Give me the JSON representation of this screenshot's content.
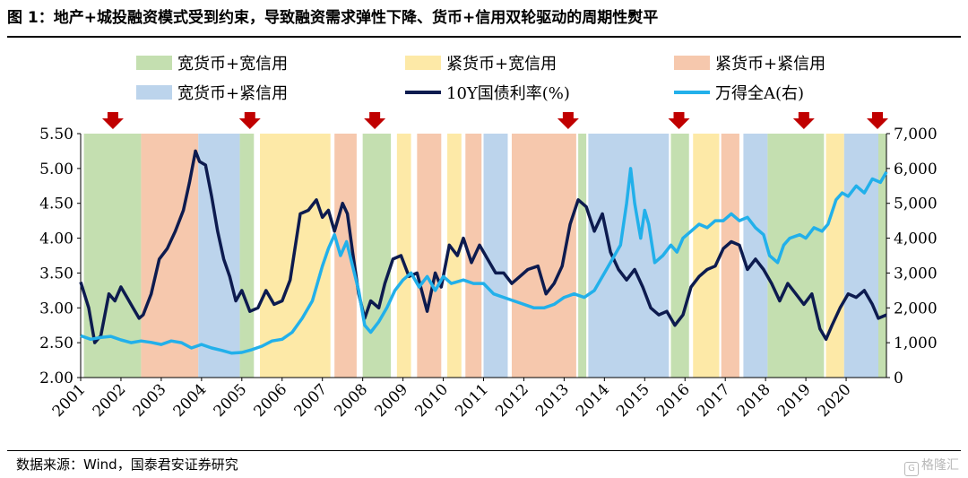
{
  "title": "图 1：地产+城投融资模式受到约束，导致融资需求弹性下降、货币+信用双轮驱动的周期性熨平",
  "source": "数据来源：Wind，国泰君安证券研究",
  "watermark": "格隆汇",
  "chart_data": {
    "type": "line",
    "x_ticks": [
      "2001",
      "2002",
      "2003",
      "2004",
      "2005",
      "2006",
      "2007",
      "2008",
      "2009",
      "2010",
      "2011",
      "2012",
      "2013",
      "2014",
      "2015",
      "2016",
      "2017",
      "2018",
      "2019",
      "2020"
    ],
    "y_left": {
      "ticks": [
        "2.00",
        "2.50",
        "3.00",
        "3.50",
        "4.00",
        "4.50",
        "5.00",
        "5.50"
      ],
      "range": [
        2.0,
        5.5
      ]
    },
    "y_right": {
      "ticks": [
        "0",
        "1,000",
        "2,000",
        "3,000",
        "4,000",
        "5,000",
        "6,000",
        "7,000"
      ],
      "range": [
        0,
        7000
      ]
    },
    "regime_legend": [
      {
        "key": "g",
        "name": "宽货币+宽信用",
        "color": "#c4dfb0"
      },
      {
        "key": "y",
        "name": "紧货币+宽信用",
        "color": "#fde9a7"
      },
      {
        "key": "o",
        "name": "紧货币+紧信用",
        "color": "#f6c8ad"
      },
      {
        "key": "b",
        "name": "宽货币+紧信用",
        "color": "#bcd4ec"
      }
    ],
    "regimes": [
      {
        "key": "g",
        "start": 2001.08,
        "end": 2002.5
      },
      {
        "key": "o",
        "start": 2002.5,
        "end": 2003.92
      },
      {
        "key": "b",
        "start": 2003.92,
        "end": 2004.95
      },
      {
        "key": "g",
        "start": 2004.95,
        "end": 2005.3
      },
      {
        "key": "y",
        "start": 2005.45,
        "end": 2007.2
      },
      {
        "key": "o",
        "start": 2007.3,
        "end": 2007.85
      },
      {
        "key": "g",
        "start": 2008.0,
        "end": 2008.7
      },
      {
        "key": "y",
        "start": 2008.85,
        "end": 2009.2
      },
      {
        "key": "o",
        "start": 2009.35,
        "end": 2009.95
      },
      {
        "key": "y",
        "start": 2010.1,
        "end": 2010.45
      },
      {
        "key": "o",
        "start": 2010.55,
        "end": 2010.95
      },
      {
        "key": "b",
        "start": 2011.0,
        "end": 2011.6
      },
      {
        "key": "o",
        "start": 2011.7,
        "end": 2013.3
      },
      {
        "key": "g",
        "start": 2013.35,
        "end": 2013.55
      },
      {
        "key": "b",
        "start": 2013.6,
        "end": 2015.6
      },
      {
        "key": "g",
        "start": 2015.65,
        "end": 2016.1
      },
      {
        "key": "y",
        "start": 2016.2,
        "end": 2016.85
      },
      {
        "key": "o",
        "start": 2016.9,
        "end": 2017.35
      },
      {
        "key": "b",
        "start": 2017.45,
        "end": 2018.05
      },
      {
        "key": "g",
        "start": 2018.05,
        "end": 2019.45
      },
      {
        "key": "y",
        "start": 2019.5,
        "end": 2019.95
      },
      {
        "key": "b",
        "start": 2019.95,
        "end": 2020.8
      },
      {
        "key": "g",
        "start": 2020.8,
        "end": 2021.0
      }
    ],
    "arrows_x": [
      2001.8,
      2005.2,
      2008.3,
      2013.1,
      2015.85,
      2018.95,
      2021.05
    ],
    "series": [
      {
        "name": "10Y国债利率(%)",
        "axis": "left",
        "color": "#0d1b4f",
        "points": [
          [
            2001.0,
            3.37
          ],
          [
            2001.2,
            3.0
          ],
          [
            2001.35,
            2.5
          ],
          [
            2001.5,
            2.6
          ],
          [
            2001.7,
            3.2
          ],
          [
            2001.85,
            3.1
          ],
          [
            2002.0,
            3.3
          ],
          [
            2002.15,
            3.15
          ],
          [
            2002.3,
            3.0
          ],
          [
            2002.45,
            2.85
          ],
          [
            2002.55,
            2.9
          ],
          [
            2002.75,
            3.2
          ],
          [
            2002.95,
            3.7
          ],
          [
            2003.15,
            3.85
          ],
          [
            2003.35,
            4.1
          ],
          [
            2003.55,
            4.4
          ],
          [
            2003.7,
            4.8
          ],
          [
            2003.85,
            5.25
          ],
          [
            2003.95,
            5.1
          ],
          [
            2004.1,
            5.05
          ],
          [
            2004.25,
            4.6
          ],
          [
            2004.4,
            4.1
          ],
          [
            2004.55,
            3.7
          ],
          [
            2004.7,
            3.45
          ],
          [
            2004.85,
            3.1
          ],
          [
            2005.0,
            3.25
          ],
          [
            2005.2,
            2.95
          ],
          [
            2005.4,
            3.0
          ],
          [
            2005.6,
            3.25
          ],
          [
            2005.8,
            3.05
          ],
          [
            2006.0,
            3.1
          ],
          [
            2006.2,
            3.4
          ],
          [
            2006.45,
            4.35
          ],
          [
            2006.65,
            4.4
          ],
          [
            2006.85,
            4.55
          ],
          [
            2007.0,
            4.3
          ],
          [
            2007.15,
            4.4
          ],
          [
            2007.3,
            4.1
          ],
          [
            2007.5,
            4.5
          ],
          [
            2007.62,
            4.35
          ],
          [
            2007.75,
            3.8
          ],
          [
            2007.9,
            3.2
          ],
          [
            2008.05,
            2.85
          ],
          [
            2008.2,
            3.1
          ],
          [
            2008.4,
            3.0
          ],
          [
            2008.55,
            3.35
          ],
          [
            2008.75,
            3.7
          ],
          [
            2008.95,
            3.75
          ],
          [
            2009.15,
            3.45
          ],
          [
            2009.35,
            3.5
          ],
          [
            2009.6,
            2.95
          ],
          [
            2009.8,
            3.5
          ],
          [
            2009.95,
            3.3
          ],
          [
            2010.15,
            3.9
          ],
          [
            2010.35,
            3.75
          ],
          [
            2010.5,
            4.0
          ],
          [
            2010.7,
            3.65
          ],
          [
            2010.9,
            3.9
          ],
          [
            2011.1,
            3.7
          ],
          [
            2011.3,
            3.5
          ],
          [
            2011.5,
            3.5
          ],
          [
            2011.7,
            3.35
          ],
          [
            2011.9,
            3.45
          ],
          [
            2012.1,
            3.55
          ],
          [
            2012.35,
            3.6
          ],
          [
            2012.55,
            3.2
          ],
          [
            2012.75,
            3.35
          ],
          [
            2012.95,
            3.6
          ],
          [
            2013.15,
            4.2
          ],
          [
            2013.35,
            4.55
          ],
          [
            2013.55,
            4.45
          ],
          [
            2013.75,
            4.1
          ],
          [
            2013.95,
            4.35
          ],
          [
            2014.15,
            3.8
          ],
          [
            2014.35,
            3.55
          ],
          [
            2014.55,
            3.4
          ],
          [
            2014.75,
            3.55
          ],
          [
            2014.95,
            3.3
          ],
          [
            2015.15,
            3.0
          ],
          [
            2015.35,
            2.9
          ],
          [
            2015.55,
            2.95
          ],
          [
            2015.75,
            2.75
          ],
          [
            2015.95,
            2.9
          ],
          [
            2016.15,
            3.3
          ],
          [
            2016.35,
            3.45
          ],
          [
            2016.55,
            3.55
          ],
          [
            2016.75,
            3.6
          ],
          [
            2016.95,
            3.85
          ],
          [
            2017.15,
            3.95
          ],
          [
            2017.35,
            3.9
          ],
          [
            2017.55,
            3.55
          ],
          [
            2017.75,
            3.7
          ],
          [
            2017.95,
            3.55
          ],
          [
            2018.15,
            3.35
          ],
          [
            2018.35,
            3.1
          ],
          [
            2018.55,
            3.35
          ],
          [
            2018.75,
            3.2
          ],
          [
            2018.95,
            3.05
          ],
          [
            2019.15,
            3.2
          ],
          [
            2019.35,
            2.7
          ],
          [
            2019.5,
            2.55
          ],
          [
            2019.65,
            2.75
          ],
          [
            2019.85,
            3.0
          ],
          [
            2020.05,
            3.2
          ],
          [
            2020.25,
            3.15
          ],
          [
            2020.45,
            3.25
          ],
          [
            2020.65,
            3.05
          ],
          [
            2020.8,
            2.85
          ],
          [
            2021.0,
            2.9
          ]
        ]
      },
      {
        "name": "万得全A(右)",
        "axis": "right",
        "color": "#22b0ea",
        "points": [
          [
            2001.0,
            1200
          ],
          [
            2001.25,
            1100
          ],
          [
            2001.5,
            1150
          ],
          [
            2001.75,
            1180
          ],
          [
            2002.0,
            1080
          ],
          [
            2002.25,
            1000
          ],
          [
            2002.5,
            1050
          ],
          [
            2002.75,
            1010
          ],
          [
            2003.0,
            950
          ],
          [
            2003.25,
            1050
          ],
          [
            2003.5,
            1000
          ],
          [
            2003.75,
            850
          ],
          [
            2004.0,
            950
          ],
          [
            2004.25,
            850
          ],
          [
            2004.5,
            780
          ],
          [
            2004.75,
            700
          ],
          [
            2005.0,
            720
          ],
          [
            2005.25,
            800
          ],
          [
            2005.5,
            900
          ],
          [
            2005.75,
            1050
          ],
          [
            2006.0,
            1100
          ],
          [
            2006.25,
            1300
          ],
          [
            2006.5,
            1700
          ],
          [
            2006.75,
            2200
          ],
          [
            2007.0,
            3200
          ],
          [
            2007.15,
            3700
          ],
          [
            2007.3,
            4100
          ],
          [
            2007.45,
            3500
          ],
          [
            2007.6,
            3900
          ],
          [
            2007.75,
            3200
          ],
          [
            2007.9,
            2500
          ],
          [
            2008.05,
            1500
          ],
          [
            2008.2,
            1300
          ],
          [
            2008.4,
            1600
          ],
          [
            2008.6,
            2000
          ],
          [
            2008.8,
            2500
          ],
          [
            2009.0,
            2800
          ],
          [
            2009.2,
            3000
          ],
          [
            2009.4,
            2600
          ],
          [
            2009.6,
            2900
          ],
          [
            2009.8,
            2500
          ],
          [
            2010.0,
            2900
          ],
          [
            2010.2,
            2700
          ],
          [
            2010.5,
            2800
          ],
          [
            2010.75,
            2700
          ],
          [
            2011.0,
            2700
          ],
          [
            2011.25,
            2400
          ],
          [
            2011.5,
            2300
          ],
          [
            2011.75,
            2200
          ],
          [
            2012.0,
            2100
          ],
          [
            2012.25,
            2000
          ],
          [
            2012.5,
            2000
          ],
          [
            2012.75,
            2100
          ],
          [
            2013.0,
            2300
          ],
          [
            2013.25,
            2400
          ],
          [
            2013.5,
            2300
          ],
          [
            2013.75,
            2500
          ],
          [
            2014.0,
            3000
          ],
          [
            2014.2,
            3400
          ],
          [
            2014.4,
            3800
          ],
          [
            2014.55,
            5000
          ],
          [
            2014.65,
            6000
          ],
          [
            2014.75,
            5000
          ],
          [
            2014.9,
            4000
          ],
          [
            2015.0,
            4800
          ],
          [
            2015.1,
            4400
          ],
          [
            2015.25,
            3300
          ],
          [
            2015.45,
            3500
          ],
          [
            2015.65,
            3800
          ],
          [
            2015.8,
            3600
          ],
          [
            2015.95,
            4000
          ],
          [
            2016.15,
            4200
          ],
          [
            2016.35,
            4400
          ],
          [
            2016.55,
            4300
          ],
          [
            2016.75,
            4500
          ],
          [
            2016.95,
            4500
          ],
          [
            2017.15,
            4700
          ],
          [
            2017.35,
            4500
          ],
          [
            2017.55,
            4600
          ],
          [
            2017.75,
            4300
          ],
          [
            2017.95,
            4100
          ],
          [
            2018.1,
            3500
          ],
          [
            2018.3,
            3300
          ],
          [
            2018.45,
            3800
          ],
          [
            2018.6,
            4000
          ],
          [
            2018.85,
            4100
          ],
          [
            2019.0,
            4000
          ],
          [
            2019.2,
            4300
          ],
          [
            2019.4,
            4200
          ],
          [
            2019.55,
            4400
          ],
          [
            2019.75,
            5100
          ],
          [
            2019.9,
            5300
          ],
          [
            2020.05,
            5200
          ],
          [
            2020.25,
            5500
          ],
          [
            2020.45,
            5300
          ],
          [
            2020.65,
            5700
          ],
          [
            2020.85,
            5600
          ],
          [
            2021.0,
            5900
          ]
        ]
      }
    ]
  }
}
